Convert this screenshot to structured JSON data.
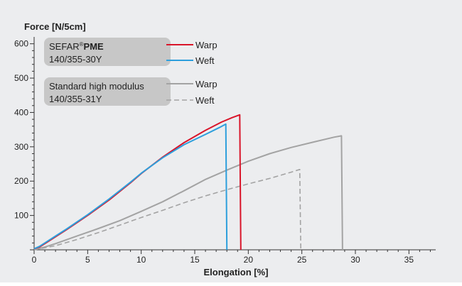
{
  "colors": {
    "background": "#ecedef",
    "axis": "#333333",
    "warp_pme": "#d9152a",
    "weft_pme": "#2d9fdc",
    "standard": "#a3a3a3",
    "legend_box": "#c7c7c7"
  },
  "legend": {
    "group1": {
      "brand": "SEFAR",
      "registered": "®",
      "product": "PME",
      "code": "140/355-30Y",
      "warp_label": "Warp",
      "weft_label": "Weft"
    },
    "group2": {
      "name": "Standard high modulus",
      "code": "140/355-31Y",
      "warp_label": "Warp",
      "weft_label": "Weft"
    }
  },
  "chart_data": {
    "type": "line",
    "ylabel": "Force [N/5cm]",
    "xlabel": "Elongation [%]",
    "xlim": [
      0,
      37.5
    ],
    "ylim": [
      0,
      620
    ],
    "x_ticks": [
      0,
      5,
      10,
      15,
      20,
      25,
      30,
      35
    ],
    "y_ticks": [
      100,
      200,
      300,
      400,
      500,
      600
    ],
    "grid": false,
    "series": [
      {
        "name": "SEFAR PME 140/355-30Y Warp",
        "style": "solid",
        "color": "#d9152a",
        "points": [
          [
            0,
            3
          ],
          [
            0.5,
            8
          ],
          [
            1,
            18
          ],
          [
            2,
            38
          ],
          [
            3,
            58
          ],
          [
            5,
            100
          ],
          [
            7,
            145
          ],
          [
            9,
            195
          ],
          [
            10,
            222
          ],
          [
            12,
            270
          ],
          [
            14,
            312
          ],
          [
            16,
            348
          ],
          [
            17.5,
            372
          ],
          [
            18.5,
            385
          ],
          [
            19.2,
            393
          ],
          [
            19.3,
            0
          ]
        ]
      },
      {
        "name": "SEFAR PME 140/355-30Y Weft",
        "style": "solid",
        "color": "#2d9fdc",
        "points": [
          [
            0,
            3
          ],
          [
            0.5,
            10
          ],
          [
            1,
            20
          ],
          [
            2,
            40
          ],
          [
            3,
            60
          ],
          [
            5,
            102
          ],
          [
            7,
            148
          ],
          [
            9,
            197
          ],
          [
            10,
            223
          ],
          [
            12,
            268
          ],
          [
            14,
            306
          ],
          [
            16,
            336
          ],
          [
            17.3,
            356
          ],
          [
            17.9,
            366
          ],
          [
            18,
            0
          ]
        ]
      },
      {
        "name": "Standard high modulus 140/355-31Y Warp",
        "style": "solid",
        "color": "#a3a3a3",
        "points": [
          [
            0,
            0
          ],
          [
            1,
            8
          ],
          [
            2,
            18
          ],
          [
            4,
            40
          ],
          [
            6,
            62
          ],
          [
            8,
            85
          ],
          [
            10,
            112
          ],
          [
            12,
            140
          ],
          [
            14,
            172
          ],
          [
            16,
            205
          ],
          [
            18,
            232
          ],
          [
            20,
            258
          ],
          [
            22,
            280
          ],
          [
            24,
            298
          ],
          [
            26,
            313
          ],
          [
            28,
            328
          ],
          [
            28.7,
            332
          ],
          [
            28.8,
            0
          ]
        ]
      },
      {
        "name": "Standard high modulus 140/355-31Y Weft",
        "style": "dashed",
        "color": "#a3a3a3",
        "points": [
          [
            0,
            0
          ],
          [
            2,
            12
          ],
          [
            4,
            30
          ],
          [
            6,
            50
          ],
          [
            8,
            72
          ],
          [
            10,
            94
          ],
          [
            12,
            115
          ],
          [
            14,
            137
          ],
          [
            16,
            157
          ],
          [
            18,
            175
          ],
          [
            20,
            192
          ],
          [
            22,
            208
          ],
          [
            24,
            226
          ],
          [
            24.8,
            234
          ],
          [
            24.9,
            0
          ]
        ]
      }
    ]
  }
}
